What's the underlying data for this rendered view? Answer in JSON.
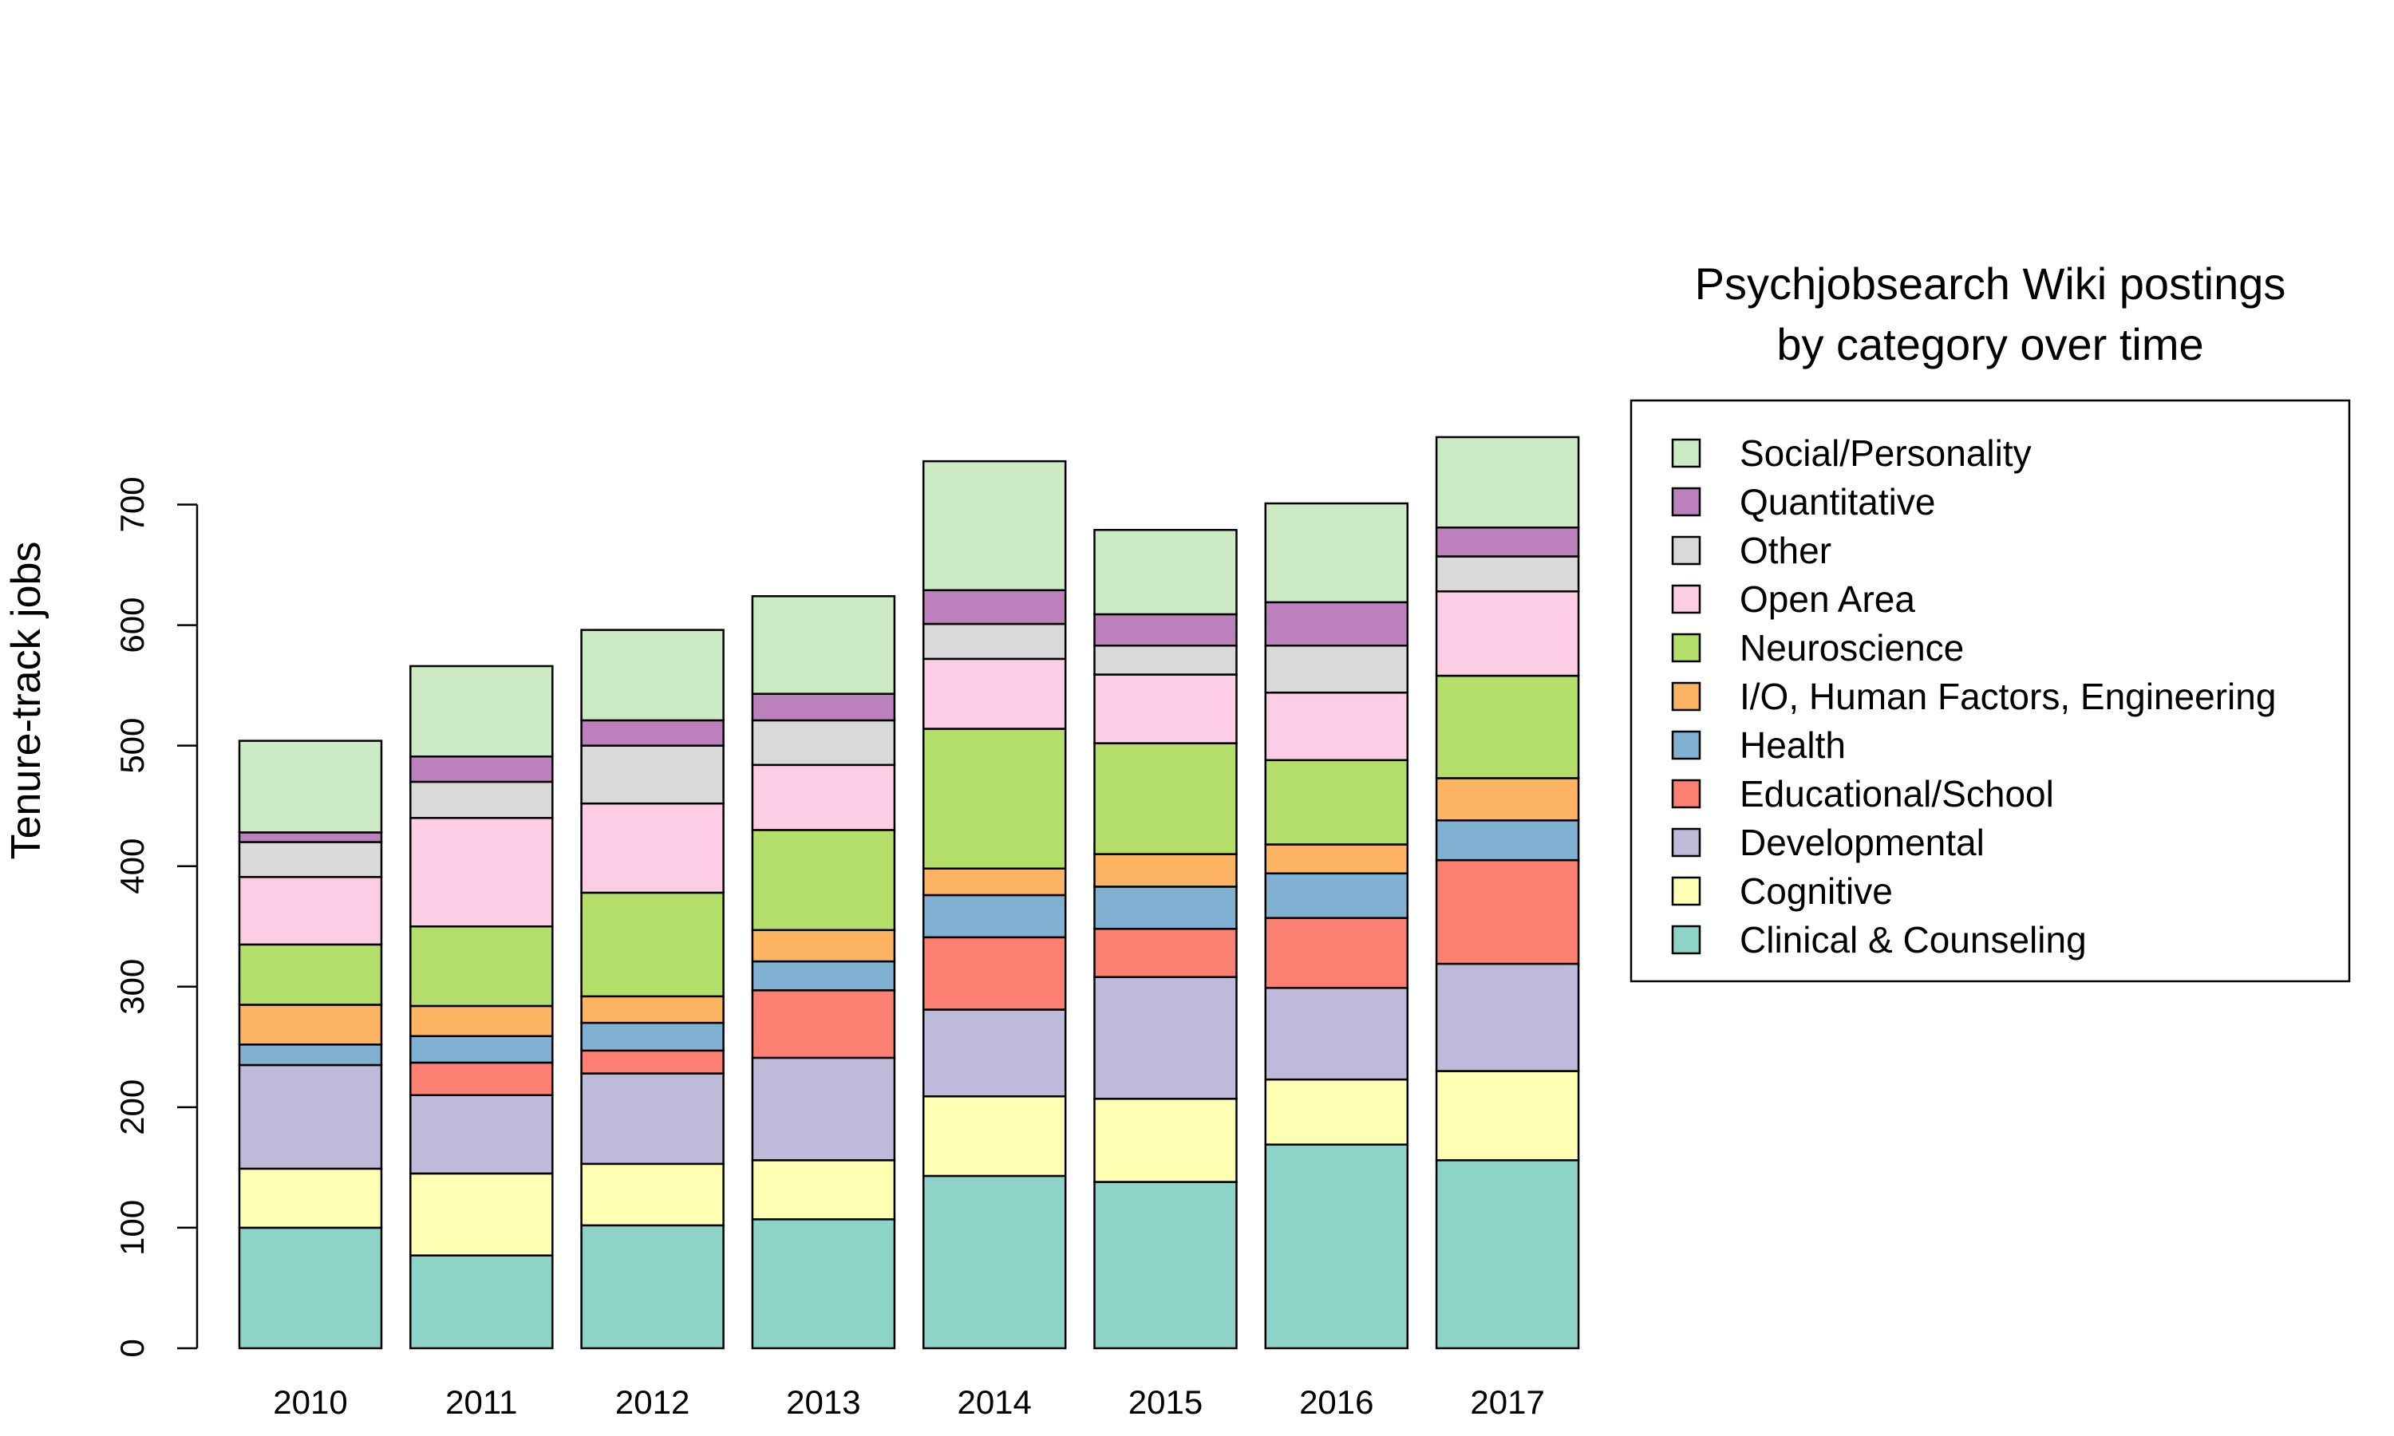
{
  "chart_data": {
    "type": "bar",
    "stacked": true,
    "categories": [
      "2010",
      "2011",
      "2012",
      "2013",
      "2014",
      "2015",
      "2016",
      "2017"
    ],
    "ylabel": "Tenure-track jobs",
    "xlabel": "",
    "ylim": [
      0,
      760
    ],
    "yticks": [
      0,
      100,
      200,
      300,
      400,
      500,
      600,
      700
    ],
    "grid": false,
    "legend_position": "right",
    "legend_title": [
      "Psychjobsearch Wiki postings",
      "by category over time"
    ],
    "series": [
      {
        "name": "Clinical & Counseling",
        "color": "#8DD3C7",
        "values": [
          100,
          77,
          102,
          107,
          143,
          138,
          169,
          156
        ]
      },
      {
        "name": "Cognitive",
        "color": "#FFFFB3",
        "values": [
          49,
          68,
          51,
          49,
          66,
          69,
          54,
          74
        ]
      },
      {
        "name": "Developmental",
        "color": "#BEBADA",
        "values": [
          86,
          65,
          75,
          85,
          72,
          101,
          76,
          89
        ]
      },
      {
        "name": "Educational/School",
        "color": "#FB8072",
        "values": [
          0,
          27,
          19,
          56,
          60,
          40,
          58,
          86
        ]
      },
      {
        "name": "Health",
        "color": "#80B1D3",
        "values": [
          17,
          22,
          23,
          24,
          35,
          35,
          37,
          33
        ]
      },
      {
        "name": "I/O, Human Factors, Engineering",
        "color": "#FDB462",
        "values": [
          33,
          25,
          22,
          26,
          22,
          27,
          24,
          35
        ]
      },
      {
        "name": "Neuroscience",
        "color": "#B3DE69",
        "values": [
          50,
          66,
          86,
          83,
          116,
          92,
          70,
          85
        ]
      },
      {
        "name": "Open Area",
        "color": "#FCCDE5",
        "values": [
          56,
          90,
          74,
          54,
          58,
          57,
          56,
          70
        ]
      },
      {
        "name": "Other",
        "color": "#D9D9D9",
        "values": [
          29,
          30,
          48,
          37,
          29,
          24,
          39,
          29
        ]
      },
      {
        "name": "Quantitative",
        "color": "#BC80BD",
        "values": [
          8,
          21,
          21,
          22,
          28,
          26,
          36,
          24
        ]
      },
      {
        "name": "Social/Personality",
        "color": "#CCEBC5",
        "values": [
          76,
          75,
          75,
          81,
          107,
          70,
          82,
          75
        ]
      }
    ]
  }
}
